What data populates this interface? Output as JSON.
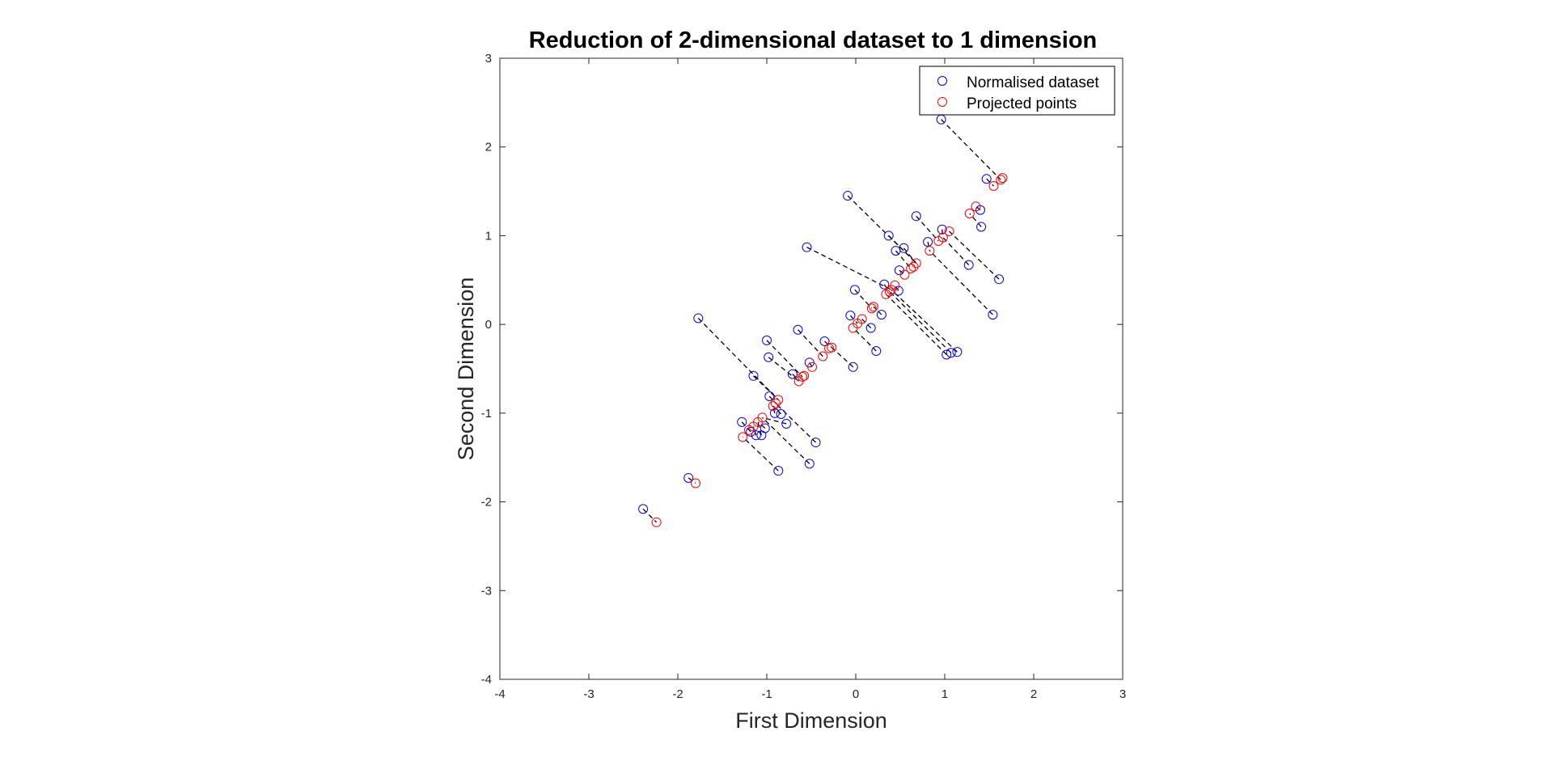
{
  "chart_data": {
    "type": "scatter",
    "title": "Reduction of 2-dimensional dataset to 1 dimension",
    "xlabel": "First Dimension",
    "ylabel": "Second Dimension",
    "xlim": [
      -4,
      3
    ],
    "ylim": [
      -4,
      3
    ],
    "xticks": [
      "-4",
      "-3",
      "-2",
      "-1",
      "0",
      "1",
      "2",
      "3"
    ],
    "yticks": [
      "3",
      "2",
      "1",
      "0",
      "-1",
      "-2",
      "-3",
      "-4"
    ],
    "grid": false,
    "legend_position": "top-right",
    "legend": [
      "Normalised dataset",
      "Projected points"
    ],
    "series": [
      {
        "name": "Normalised dataset",
        "marker": "circle",
        "color": "#0000ff",
        "points": [
          [
            -2.39,
            -2.08
          ],
          [
            -1.88,
            -1.73
          ],
          [
            -1.77,
            0.07
          ],
          [
            -1.28,
            -1.1
          ],
          [
            -1.18,
            -1.21
          ],
          [
            -1.15,
            -0.58
          ],
          [
            -1.12,
            -1.25
          ],
          [
            -1.06,
            -1.25
          ],
          [
            -1.02,
            -1.17
          ],
          [
            -1.0,
            -0.18
          ],
          [
            -0.98,
            -0.37
          ],
          [
            -0.97,
            -0.81
          ],
          [
            -0.91,
            -1.0
          ],
          [
            -0.87,
            -1.65
          ],
          [
            -0.84,
            -1.01
          ],
          [
            -0.78,
            -1.12
          ],
          [
            -0.71,
            -0.56
          ],
          [
            -0.65,
            -0.06
          ],
          [
            -0.55,
            0.87
          ],
          [
            -0.52,
            -0.43
          ],
          [
            -0.52,
            -1.57
          ],
          [
            -0.45,
            -1.33
          ],
          [
            -0.35,
            -0.19
          ],
          [
            -0.09,
            1.45
          ],
          [
            -0.06,
            0.1
          ],
          [
            -0.03,
            -0.48
          ],
          [
            -0.01,
            0.39
          ],
          [
            0.17,
            -0.04
          ],
          [
            0.23,
            -0.3
          ],
          [
            0.29,
            0.11
          ],
          [
            0.32,
            0.45
          ],
          [
            0.37,
            1.0
          ],
          [
            0.45,
            0.83
          ],
          [
            0.48,
            0.38
          ],
          [
            0.49,
            0.61
          ],
          [
            0.54,
            0.86
          ],
          [
            0.68,
            1.22
          ],
          [
            0.81,
            0.93
          ],
          [
            0.96,
            2.31
          ],
          [
            0.97,
            1.07
          ],
          [
            1.02,
            -0.34
          ],
          [
            1.07,
            -0.32
          ],
          [
            1.14,
            -0.31
          ],
          [
            1.27,
            0.67
          ],
          [
            1.4,
            1.29
          ],
          [
            1.41,
            1.1
          ],
          [
            1.47,
            1.64
          ],
          [
            1.54,
            0.11
          ],
          [
            1.61,
            0.51
          ]
        ]
      },
      {
        "name": "Projected points",
        "marker": "circle",
        "color": "#ff0000",
        "points": [
          [
            -2.24,
            -2.23
          ],
          [
            -1.8,
            -1.79
          ],
          [
            -1.27,
            -1.27
          ],
          [
            -1.2,
            -1.19
          ],
          [
            -1.15,
            -1.15
          ],
          [
            -1.1,
            -1.1
          ],
          [
            -1.05,
            -1.05
          ],
          [
            -0.93,
            -0.92
          ],
          [
            -0.9,
            -0.89
          ],
          [
            -0.87,
            -0.85
          ],
          [
            -0.64,
            -0.64
          ],
          [
            -0.6,
            -0.59
          ],
          [
            -0.58,
            -0.58
          ],
          [
            -0.49,
            -0.48
          ],
          [
            -0.37,
            -0.36
          ],
          [
            -0.3,
            -0.27
          ],
          [
            -0.27,
            -0.26
          ],
          [
            -0.03,
            -0.04
          ],
          [
            0.02,
            0.01
          ],
          [
            0.07,
            0.06
          ],
          [
            0.18,
            0.18
          ],
          [
            0.2,
            0.2
          ],
          [
            0.34,
            0.34
          ],
          [
            0.38,
            0.37
          ],
          [
            0.4,
            0.39
          ],
          [
            0.44,
            0.44
          ],
          [
            0.55,
            0.56
          ],
          [
            0.62,
            0.63
          ],
          [
            0.65,
            0.65
          ],
          [
            0.68,
            0.69
          ],
          [
            0.83,
            0.83
          ],
          [
            0.93,
            0.94
          ],
          [
            0.98,
            0.98
          ],
          [
            1.05,
            1.05
          ],
          [
            1.28,
            1.25
          ],
          [
            1.35,
            1.33
          ],
          [
            1.55,
            1.56
          ],
          [
            1.63,
            1.63
          ],
          [
            1.65,
            1.65
          ]
        ]
      }
    ],
    "projection_lines": [
      {
        "from": [
          -2.39,
          -2.08
        ],
        "to": [
          -2.24,
          -2.23
        ]
      },
      {
        "from": [
          -1.88,
          -1.73
        ],
        "to": [
          -1.8,
          -1.79
        ]
      },
      {
        "from": [
          -1.77,
          0.07
        ],
        "to": [
          -0.87,
          -0.85
        ]
      },
      {
        "from": [
          -1.28,
          -1.1
        ],
        "to": [
          -1.2,
          -1.19
        ]
      },
      {
        "from": [
          -1.18,
          -1.21
        ],
        "to": [
          -1.2,
          -1.19
        ]
      },
      {
        "from": [
          -1.15,
          -0.58
        ],
        "to": [
          -0.87,
          -0.85
        ]
      },
      {
        "from": [
          -1.12,
          -1.25
        ],
        "to": [
          -1.15,
          -1.15
        ]
      },
      {
        "from": [
          -1.06,
          -1.25
        ],
        "to": [
          -1.1,
          -1.1
        ]
      },
      {
        "from": [
          -1.02,
          -1.17
        ],
        "to": [
          -1.1,
          -1.1
        ]
      },
      {
        "from": [
          -1.0,
          -0.18
        ],
        "to": [
          -0.6,
          -0.59
        ]
      },
      {
        "from": [
          -0.98,
          -0.37
        ],
        "to": [
          -0.64,
          -0.64
        ]
      },
      {
        "from": [
          -0.97,
          -0.81
        ],
        "to": [
          -0.9,
          -0.89
        ]
      },
      {
        "from": [
          -0.91,
          -1.0
        ],
        "to": [
          -0.93,
          -0.92
        ]
      },
      {
        "from": [
          -0.87,
          -1.65
        ],
        "to": [
          -1.27,
          -1.27
        ]
      },
      {
        "from": [
          -0.84,
          -1.01
        ],
        "to": [
          -0.93,
          -0.92
        ]
      },
      {
        "from": [
          -0.78,
          -1.12
        ],
        "to": [
          -1.05,
          -1.05
        ]
      },
      {
        "from": [
          -0.71,
          -0.56
        ],
        "to": [
          -0.64,
          -0.64
        ]
      },
      {
        "from": [
          -0.65,
          -0.06
        ],
        "to": [
          -0.37,
          -0.36
        ]
      },
      {
        "from": [
          -0.55,
          0.87
        ],
        "to": [
          0.4,
          0.39
        ]
      },
      {
        "from": [
          -0.52,
          -0.43
        ],
        "to": [
          -0.49,
          -0.48
        ]
      },
      {
        "from": [
          -0.52,
          -1.57
        ],
        "to": [
          -1.05,
          -1.05
        ]
      },
      {
        "from": [
          -0.45,
          -1.33
        ],
        "to": [
          -0.9,
          -0.89
        ]
      },
      {
        "from": [
          -0.35,
          -0.19
        ],
        "to": [
          -0.27,
          -0.26
        ]
      },
      {
        "from": [
          -0.09,
          1.45
        ],
        "to": [
          0.68,
          0.69
        ]
      },
      {
        "from": [
          -0.06,
          0.1
        ],
        "to": [
          0.02,
          0.01
        ]
      },
      {
        "from": [
          -0.03,
          -0.48
        ],
        "to": [
          -0.27,
          -0.26
        ]
      },
      {
        "from": [
          -0.01,
          0.39
        ],
        "to": [
          0.18,
          0.18
        ]
      },
      {
        "from": [
          0.17,
          -0.04
        ],
        "to": [
          0.07,
          0.06
        ]
      },
      {
        "from": [
          0.23,
          -0.3
        ],
        "to": [
          -0.03,
          -0.04
        ]
      },
      {
        "from": [
          0.29,
          0.11
        ],
        "to": [
          0.2,
          0.2
        ]
      },
      {
        "from": [
          0.32,
          0.45
        ],
        "to": [
          0.38,
          0.37
        ]
      },
      {
        "from": [
          0.37,
          1.0
        ],
        "to": [
          0.68,
          0.69
        ]
      },
      {
        "from": [
          0.45,
          0.83
        ],
        "to": [
          0.62,
          0.63
        ]
      },
      {
        "from": [
          0.48,
          0.38
        ],
        "to": [
          0.44,
          0.44
        ]
      },
      {
        "from": [
          0.49,
          0.61
        ],
        "to": [
          0.55,
          0.56
        ]
      },
      {
        "from": [
          0.54,
          0.86
        ],
        "to": [
          0.68,
          0.69
        ]
      },
      {
        "from": [
          0.68,
          1.22
        ],
        "to": [
          0.93,
          0.94
        ]
      },
      {
        "from": [
          0.81,
          0.93
        ],
        "to": [
          0.83,
          0.83
        ]
      },
      {
        "from": [
          0.96,
          2.31
        ],
        "to": [
          1.63,
          1.63
        ]
      },
      {
        "from": [
          0.97,
          1.07
        ],
        "to": [
          0.98,
          0.98
        ]
      },
      {
        "from": [
          1.02,
          -0.34
        ],
        "to": [
          0.34,
          0.34
        ]
      },
      {
        "from": [
          1.07,
          -0.32
        ],
        "to": [
          0.38,
          0.37
        ]
      },
      {
        "from": [
          1.14,
          -0.31
        ],
        "to": [
          0.4,
          0.39
        ]
      },
      {
        "from": [
          1.27,
          0.67
        ],
        "to": [
          0.98,
          0.98
        ]
      },
      {
        "from": [
          1.4,
          1.29
        ],
        "to": [
          1.35,
          1.33
        ]
      },
      {
        "from": [
          1.41,
          1.1
        ],
        "to": [
          1.28,
          1.25
        ]
      },
      {
        "from": [
          1.47,
          1.64
        ],
        "to": [
          1.55,
          1.56
        ]
      },
      {
        "from": [
          1.54,
          0.11
        ],
        "to": [
          0.83,
          0.83
        ]
      },
      {
        "from": [
          1.61,
          0.51
        ],
        "to": [
          1.05,
          1.05
        ]
      }
    ],
    "line_style": {
      "color": "#000000",
      "dash": "dashed"
    }
  }
}
